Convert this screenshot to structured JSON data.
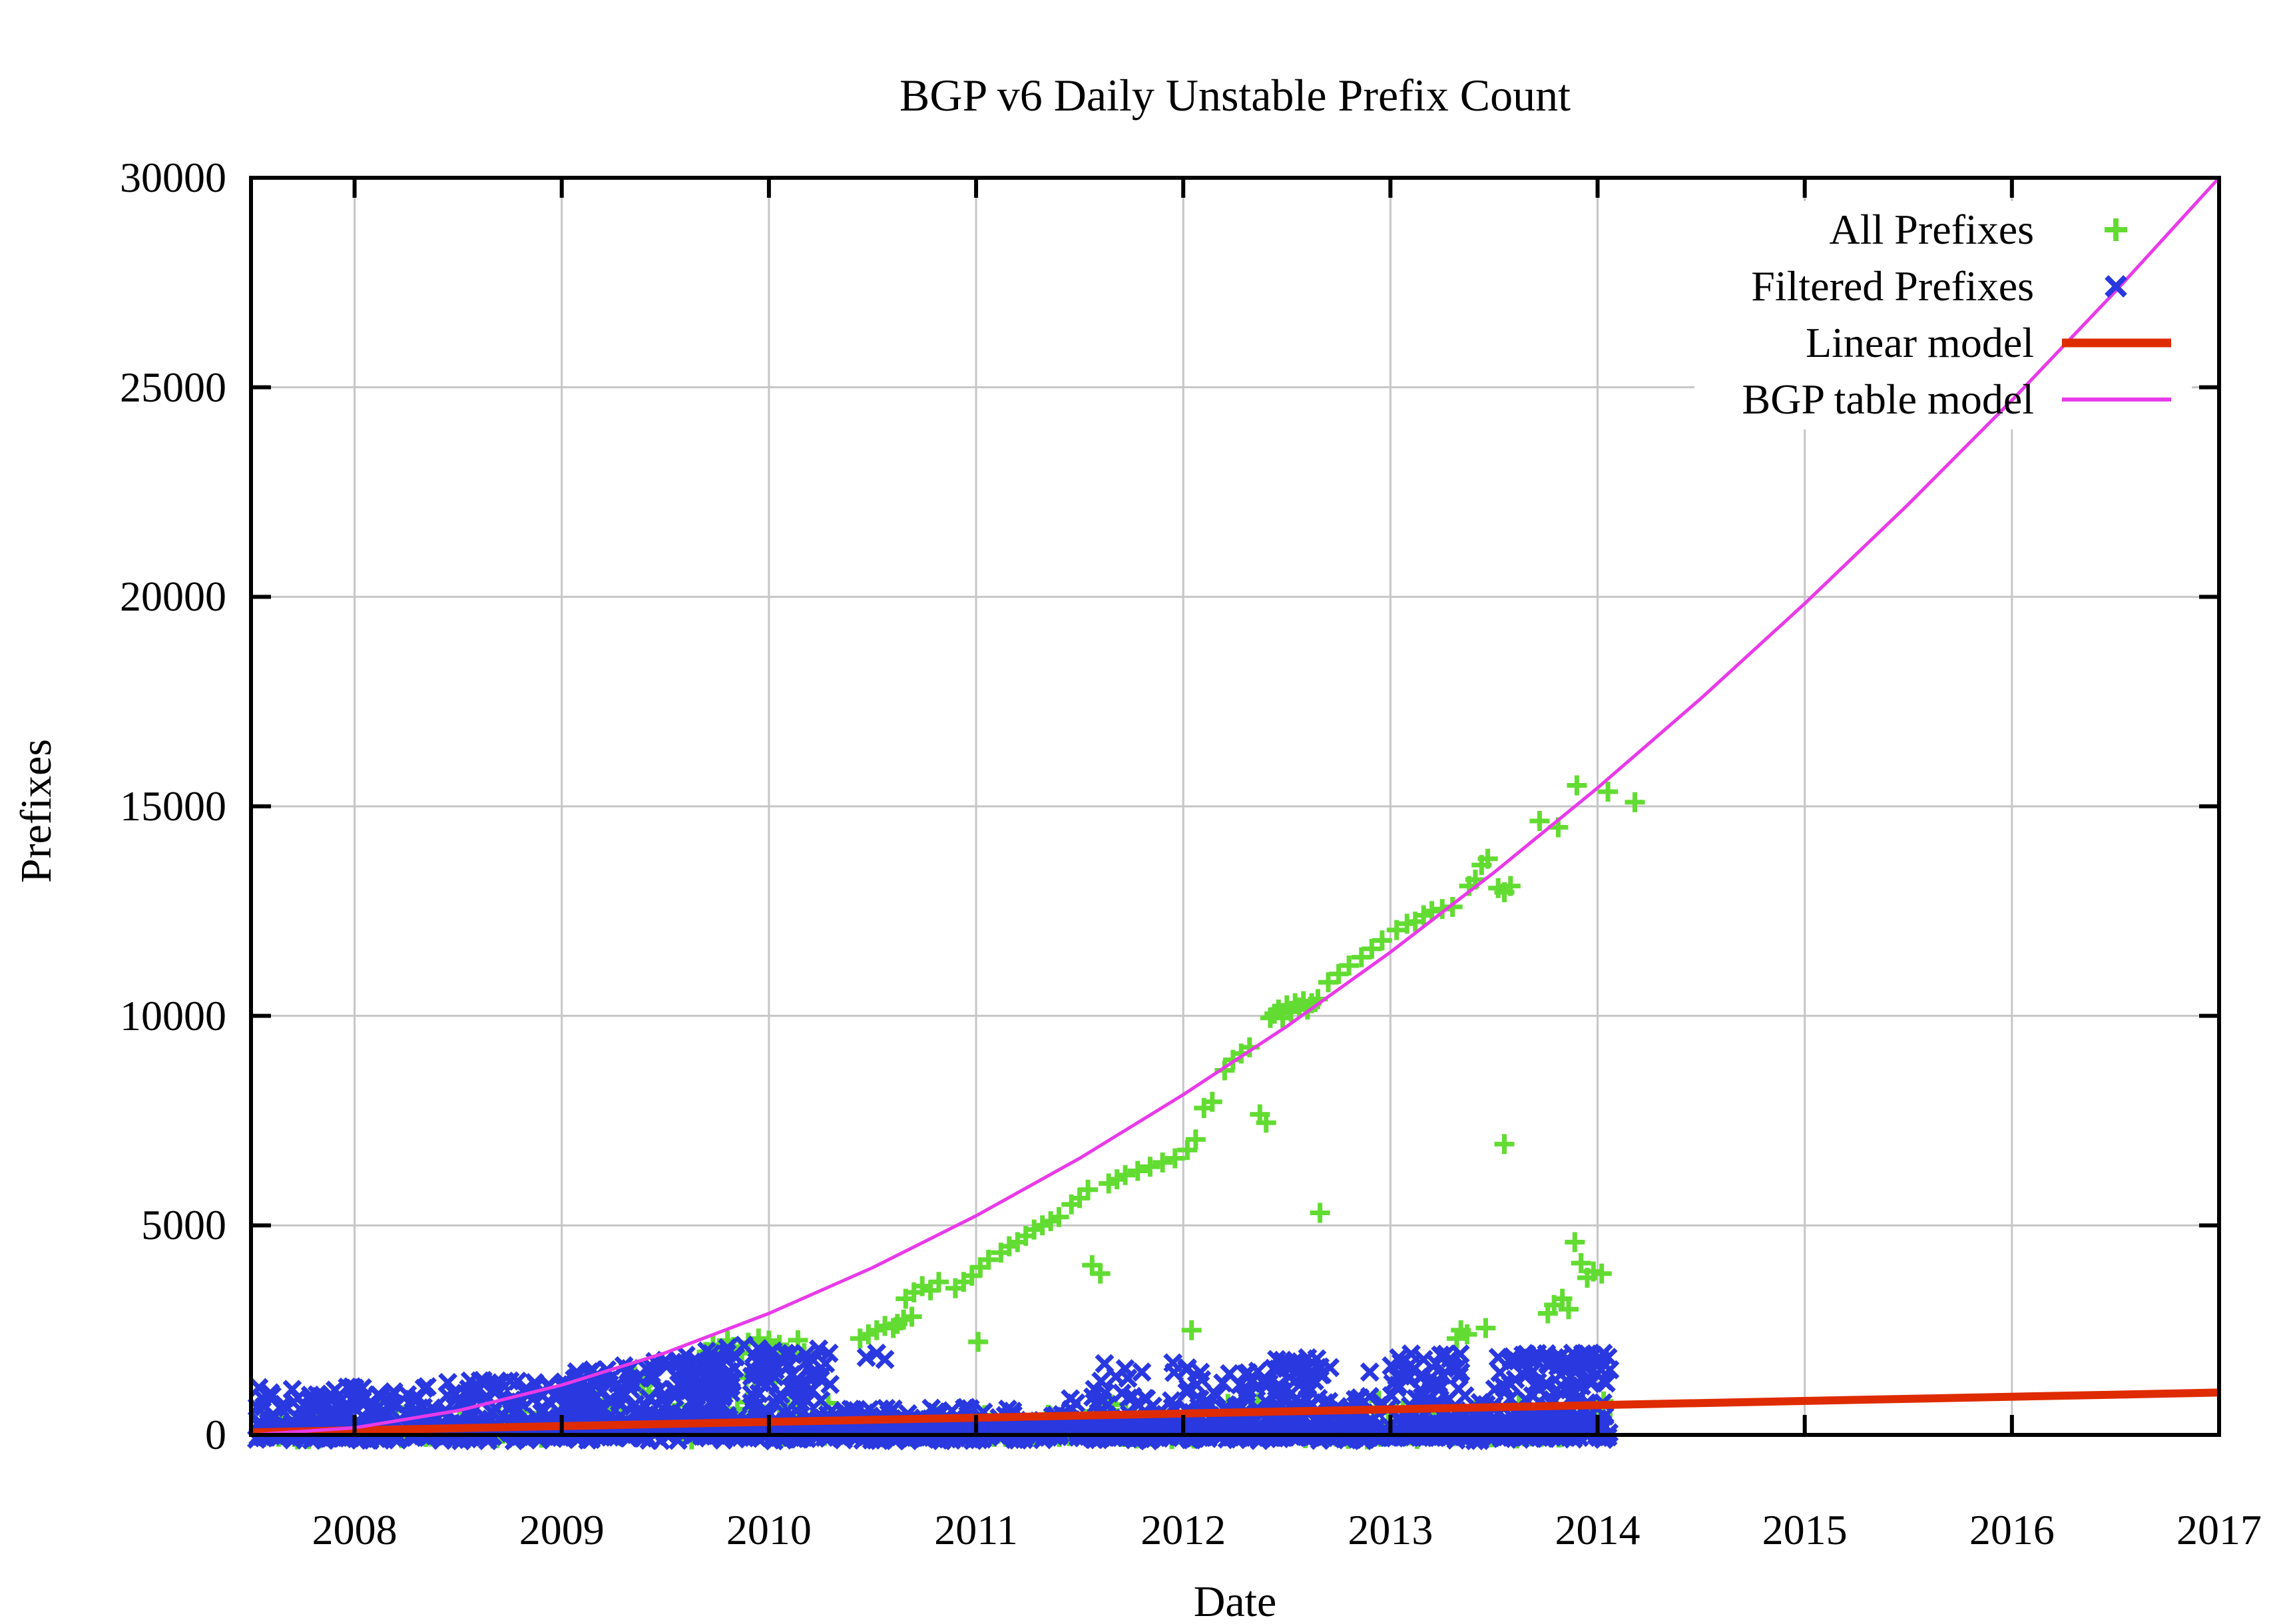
{
  "chart_data": {
    "type": "scatter",
    "title": "BGP v6 Daily Unstable Prefix Count",
    "xlabel": "Date",
    "ylabel": "Prefixes",
    "xlim": [
      2007.5,
      2017
    ],
    "ylim": [
      0,
      30000
    ],
    "xticks": [
      2008,
      2009,
      2010,
      2011,
      2012,
      2013,
      2014,
      2015,
      2016,
      2017
    ],
    "yticks": [
      0,
      5000,
      10000,
      15000,
      20000,
      25000,
      30000
    ],
    "grid": true,
    "legend_position": "top-right",
    "colors": {
      "background": "#ffffff",
      "frame": "#000000",
      "grid": "#c6c6c6",
      "legend_background": "#ffffff",
      "all_prefixes": "#62dc32",
      "filtered_prefixes": "#2938df",
      "linear_model": "#df2b00",
      "bgp_table_model": "#e83ae8"
    },
    "series": [
      {
        "name": "All Prefixes",
        "type": "points",
        "marker": "plus",
        "color": "#62dc32",
        "points": [
          [
            2009.7,
            1980
          ],
          [
            2009.73,
            2150
          ],
          [
            2009.76,
            2060
          ],
          [
            2009.8,
            2250
          ],
          [
            2009.83,
            2100
          ],
          [
            2009.87,
            1950
          ],
          [
            2009.9,
            2200
          ],
          [
            2009.95,
            2300
          ],
          [
            2010.0,
            2250
          ],
          [
            2010.05,
            2150
          ],
          [
            2010.14,
            2260
          ],
          [
            2010.17,
            1950
          ],
          [
            2010.44,
            2300
          ],
          [
            2010.48,
            2400
          ],
          [
            2010.52,
            2500
          ],
          [
            2010.56,
            2600
          ],
          [
            2010.6,
            2550
          ],
          [
            2010.62,
            2650
          ],
          [
            2010.65,
            2750
          ],
          [
            2010.69,
            2820
          ],
          [
            2010.66,
            3250
          ],
          [
            2010.7,
            3400
          ],
          [
            2010.74,
            3550
          ],
          [
            2010.78,
            3450
          ],
          [
            2010.82,
            3650
          ],
          [
            2010.9,
            3500
          ],
          [
            2010.94,
            3650
          ],
          [
            2010.98,
            3800
          ],
          [
            2011.02,
            4000
          ],
          [
            2011.06,
            4180
          ],
          [
            2011.01,
            2220
          ],
          [
            2011.12,
            4350
          ],
          [
            2011.16,
            4500
          ],
          [
            2011.2,
            4600
          ],
          [
            2011.24,
            4750
          ],
          [
            2011.28,
            4900
          ],
          [
            2011.32,
            5000
          ],
          [
            2011.36,
            5100
          ],
          [
            2011.4,
            5200
          ],
          [
            2011.46,
            5500
          ],
          [
            2011.5,
            5650
          ],
          [
            2011.54,
            5850
          ],
          [
            2011.56,
            4050
          ],
          [
            2011.6,
            3850
          ],
          [
            2011.64,
            6000
          ],
          [
            2011.68,
            6100
          ],
          [
            2011.72,
            6200
          ],
          [
            2011.78,
            6300
          ],
          [
            2011.84,
            6400
          ],
          [
            2011.9,
            6500
          ],
          [
            2011.96,
            6600
          ],
          [
            2012.02,
            6800
          ],
          [
            2012.06,
            7050
          ],
          [
            2012.1,
            7800
          ],
          [
            2012.14,
            7950
          ],
          [
            2012.04,
            2500
          ],
          [
            2012.2,
            8700
          ],
          [
            2012.24,
            8950
          ],
          [
            2012.28,
            9100
          ],
          [
            2012.32,
            9250
          ],
          [
            2012.37,
            7650
          ],
          [
            2012.4,
            7450
          ],
          [
            2012.42,
            9950
          ],
          [
            2012.44,
            10050
          ],
          [
            2012.46,
            10150
          ],
          [
            2012.48,
            9950
          ],
          [
            2012.5,
            10250
          ],
          [
            2012.52,
            10100
          ],
          [
            2012.54,
            10300
          ],
          [
            2012.56,
            10200
          ],
          [
            2012.58,
            10350
          ],
          [
            2012.6,
            10150
          ],
          [
            2012.62,
            10300
          ],
          [
            2012.65,
            10400
          ],
          [
            2012.66,
            5300
          ],
          [
            2012.7,
            10800
          ],
          [
            2012.75,
            11000
          ],
          [
            2012.8,
            11200
          ],
          [
            2012.86,
            11400
          ],
          [
            2012.91,
            11600
          ],
          [
            2012.96,
            11800
          ],
          [
            2013.03,
            12050
          ],
          [
            2013.08,
            12200
          ],
          [
            2013.12,
            12250
          ],
          [
            2013.16,
            12400
          ],
          [
            2013.2,
            12500
          ],
          [
            2013.25,
            12550
          ],
          [
            2013.3,
            12600
          ],
          [
            2013.32,
            2300
          ],
          [
            2013.34,
            2500
          ],
          [
            2013.37,
            2400
          ],
          [
            2013.46,
            2550
          ],
          [
            2013.38,
            13100
          ],
          [
            2013.41,
            13250
          ],
          [
            2013.44,
            13600
          ],
          [
            2013.47,
            13750
          ],
          [
            2013.52,
            13050
          ],
          [
            2013.55,
            12950
          ],
          [
            2013.58,
            13100
          ],
          [
            2013.55,
            6940
          ],
          [
            2013.72,
            14650
          ],
          [
            2013.81,
            14500
          ],
          [
            2013.76,
            2900
          ],
          [
            2013.79,
            3100
          ],
          [
            2013.83,
            3250
          ],
          [
            2013.86,
            3000
          ],
          [
            2013.89,
            4600
          ],
          [
            2013.92,
            4100
          ],
          [
            2013.95,
            3750
          ],
          [
            2013.98,
            3900
          ],
          [
            2014.02,
            3850
          ],
          [
            2013.9,
            15500
          ],
          [
            2014.05,
            15350
          ],
          [
            2014.18,
            15100
          ]
        ],
        "scatter_bands": [
          {
            "x0": 2007.52,
            "x1": 2009.0,
            "n": 50,
            "y0": -50,
            "y1": 700,
            "skew": 1.9
          },
          {
            "x0": 2009.05,
            "x1": 2010.3,
            "n": 40,
            "y0": 100,
            "y1": 1450,
            "skew": 1.4
          },
          {
            "x0": 2010.35,
            "x1": 2011.5,
            "n": 45,
            "y0": -50,
            "y1": 520,
            "skew": 1.8
          },
          {
            "x0": 2011.5,
            "x1": 2014.05,
            "n": 140,
            "y0": -50,
            "y1": 820,
            "skew": 2.0
          },
          {
            "x0": 2007.52,
            "x1": 2014.05,
            "n": 110,
            "y0": -110,
            "y1": 260,
            "skew": 1.0
          }
        ]
      },
      {
        "name": "Filtered Prefixes",
        "type": "points",
        "marker": "cross",
        "color": "#2938df",
        "points": [
          [
            2008.35,
            1150
          ],
          [
            2008.45,
            1250
          ],
          [
            2008.55,
            1100
          ],
          [
            2008.62,
            1300
          ],
          [
            2009.15,
            1550
          ],
          [
            2009.3,
            1650
          ],
          [
            2009.45,
            1750
          ],
          [
            2009.6,
            1900
          ],
          [
            2009.7,
            2000
          ],
          [
            2009.8,
            2080
          ],
          [
            2009.88,
            2140
          ],
          [
            2009.95,
            2060
          ],
          [
            2010.02,
            2000
          ],
          [
            2010.08,
            1950
          ],
          [
            2010.18,
            1750
          ],
          [
            2010.24,
            2050
          ],
          [
            2010.29,
            1950
          ],
          [
            2010.47,
            1850
          ],
          [
            2010.52,
            1950
          ],
          [
            2010.56,
            1800
          ],
          [
            2011.62,
            1700
          ],
          [
            2011.72,
            1580
          ],
          [
            2011.8,
            1500
          ],
          [
            2011.95,
            1720
          ],
          [
            2012.02,
            1600
          ],
          [
            2012.3,
            1450
          ],
          [
            2012.36,
            1520
          ],
          [
            2012.48,
            1780
          ],
          [
            2012.55,
            1690
          ],
          [
            2012.6,
            1840
          ],
          [
            2012.66,
            1620
          ],
          [
            2012.9,
            1500
          ],
          [
            2013.04,
            1840
          ],
          [
            2013.1,
            1930
          ],
          [
            2013.16,
            1800
          ],
          [
            2013.22,
            1700
          ],
          [
            2013.3,
            1620
          ],
          [
            2013.52,
            1850
          ],
          [
            2013.58,
            1740
          ],
          [
            2013.64,
            1900
          ],
          [
            2013.7,
            1800
          ],
          [
            2013.76,
            1700
          ],
          [
            2013.82,
            1860
          ],
          [
            2013.88,
            1950
          ],
          [
            2013.93,
            1820
          ],
          [
            2013.98,
            1900
          ],
          [
            2014.02,
            1760
          ],
          [
            2014.05,
            1850
          ]
        ],
        "scatter_bands": [
          {
            "x0": 2007.52,
            "x1": 2008.2,
            "n": 120,
            "y0": -60,
            "y1": 1150,
            "skew": 1.6
          },
          {
            "x0": 2008.2,
            "x1": 2009.05,
            "n": 150,
            "y0": -60,
            "y1": 1300,
            "skew": 1.7
          },
          {
            "x0": 2009.0,
            "x1": 2009.45,
            "n": 70,
            "y0": 150,
            "y1": 1600,
            "skew": 0.85
          },
          {
            "x0": 2009.4,
            "x1": 2009.8,
            "n": 80,
            "y0": 150,
            "y1": 1800,
            "skew": 0.85
          },
          {
            "x0": 2009.7,
            "x1": 2010.3,
            "n": 90,
            "y0": 200,
            "y1": 2000,
            "skew": 0.8
          },
          {
            "x0": 2009.05,
            "x1": 2010.35,
            "n": 80,
            "y0": 0,
            "y1": 520,
            "skew": 1.2
          },
          {
            "x0": 2010.35,
            "x1": 2011.45,
            "n": 150,
            "y0": -60,
            "y1": 660,
            "skew": 1.7
          },
          {
            "x0": 2011.45,
            "x1": 2014.06,
            "n": 500,
            "y0": -60,
            "y1": 950,
            "skew": 1.9
          },
          {
            "x0": 2012.45,
            "x1": 2012.72,
            "n": 26,
            "y0": 1050,
            "y1": 1850,
            "skew": 0.9
          },
          {
            "x0": 2013.0,
            "x1": 2013.35,
            "n": 30,
            "y0": 1050,
            "y1": 1950,
            "skew": 0.9
          },
          {
            "x0": 2013.5,
            "x1": 2014.06,
            "n": 60,
            "y0": 1050,
            "y1": 1950,
            "skew": 0.9
          },
          {
            "x0": 2011.5,
            "x1": 2012.45,
            "n": 28,
            "y0": 900,
            "y1": 1650,
            "skew": 1.0
          },
          {
            "x0": 2007.52,
            "x1": 2014.06,
            "n": 650,
            "y0": -140,
            "y1": 300,
            "skew": 1.0
          }
        ]
      },
      {
        "name": "Linear model",
        "type": "line",
        "color": "#df2b00",
        "width": 12,
        "points": [
          [
            2007.5,
            60
          ],
          [
            2017,
            1010
          ]
        ]
      },
      {
        "name": "BGP table model",
        "type": "line",
        "color": "#e83ae8",
        "width": 5,
        "points": [
          [
            2007.5,
            0
          ],
          [
            2008,
            170
          ],
          [
            2008.5,
            580
          ],
          [
            2009,
            1190
          ],
          [
            2009.5,
            1960
          ],
          [
            2010,
            2900
          ],
          [
            2010.5,
            3990
          ],
          [
            2011,
            5230
          ],
          [
            2011.5,
            6600
          ],
          [
            2012,
            8120
          ],
          [
            2012.5,
            9750
          ],
          [
            2013,
            11520
          ],
          [
            2013.5,
            13420
          ],
          [
            2014,
            15440
          ],
          [
            2014.5,
            17580
          ],
          [
            2015,
            19840
          ],
          [
            2015.5,
            22210
          ],
          [
            2016,
            24690
          ],
          [
            2016.5,
            27290
          ],
          [
            2017,
            30000
          ]
        ]
      }
    ]
  }
}
